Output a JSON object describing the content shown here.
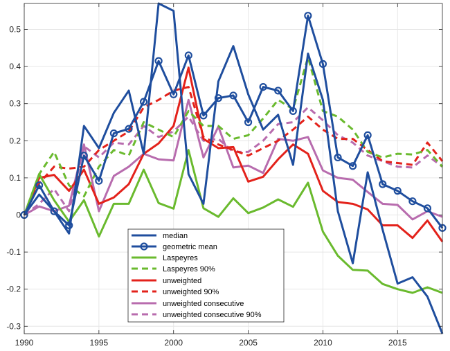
{
  "chart_data": {
    "type": "line",
    "title": "",
    "xlabel": "",
    "ylabel": "",
    "xlim": [
      1990,
      2018
    ],
    "ylim": [
      -0.32,
      0.57
    ],
    "grid": true,
    "legend_position": "bottom-center",
    "x_ticks": [
      1990,
      1995,
      2000,
      2005,
      2010,
      2015
    ],
    "x_tick_labels": [
      "1990",
      "1995",
      "2000",
      "2005",
      "2010",
      "2015"
    ],
    "y_ticks": [
      -0.3,
      -0.2,
      -0.1,
      0,
      0.1,
      0.2,
      0.3,
      0.4,
      0.5
    ],
    "y_tick_labels": [
      "-0.3",
      "-0.2",
      "-0.1",
      "0",
      "0.1",
      "0.2",
      "0.3",
      "0.4",
      "0.5"
    ],
    "x": [
      1990,
      1991,
      1992,
      1993,
      1994,
      1995,
      1996,
      1997,
      1998,
      1999,
      2000,
      2001,
      2002,
      2003,
      2004,
      2005,
      2006,
      2007,
      2008,
      2009,
      2010,
      2011,
      2012,
      2013,
      2014,
      2015,
      2016,
      2017,
      2018
    ],
    "series": [
      {
        "name": "median",
        "color": "#1f4e9e",
        "dash": "solid",
        "marker": "none",
        "values": [
          0,
          0.055,
          0.01,
          -0.05,
          0.24,
          0.18,
          0.275,
          0.335,
          0.165,
          0.57,
          0.55,
          0.11,
          0.03,
          0.36,
          0.455,
          0.325,
          0.23,
          0.27,
          0.135,
          0.435,
          0.31,
          0.01,
          -0.13,
          0.115,
          -0.04,
          -0.185,
          -0.168,
          -0.22,
          -0.32
        ]
      },
      {
        "name": "geometric mean",
        "color": "#1f4e9e",
        "dash": "solid",
        "marker": "circle",
        "values": [
          0,
          0.08,
          0.01,
          -0.028,
          0.16,
          0.092,
          0.22,
          0.232,
          0.305,
          0.415,
          0.325,
          0.43,
          0.268,
          0.315,
          0.322,
          0.25,
          0.345,
          0.335,
          0.28,
          0.537,
          0.407,
          0.155,
          0.132,
          0.215,
          0.083,
          0.065,
          0.037,
          0.018,
          -0.035
        ]
      },
      {
        "name": "Laspeyres",
        "color": "#6aba2e",
        "dash": "solid",
        "marker": "none",
        "values": [
          0,
          0.11,
          0.04,
          -0.018,
          0.04,
          -0.058,
          0.03,
          0.03,
          0.122,
          0.032,
          0.017,
          0.175,
          0.018,
          -0.005,
          0.045,
          0.005,
          0.02,
          0.042,
          0.022,
          0.087,
          -0.045,
          -0.11,
          -0.148,
          -0.15,
          -0.186,
          -0.2,
          -0.21,
          -0.195,
          -0.21
        ]
      },
      {
        "name": "Laspeyres 90%",
        "color": "#6aba2e",
        "dash": "dashed",
        "marker": "none",
        "values": [
          0,
          0.11,
          0.17,
          0.08,
          0.05,
          0.13,
          0.175,
          0.16,
          0.25,
          0.23,
          0.21,
          0.28,
          0.24,
          0.24,
          0.205,
          0.215,
          0.26,
          0.31,
          0.285,
          0.425,
          0.28,
          0.265,
          0.23,
          0.17,
          0.155,
          0.165,
          0.163,
          0.175,
          0.13
        ]
      },
      {
        "name": "unweighted",
        "color": "#e3221b",
        "dash": "solid",
        "marker": "none",
        "values": [
          0,
          0.1,
          0.108,
          0.065,
          0.122,
          0.03,
          0.047,
          0.083,
          0.165,
          0.193,
          0.24,
          0.397,
          0.205,
          0.18,
          0.183,
          0.09,
          0.103,
          0.15,
          0.19,
          0.165,
          0.065,
          0.035,
          0.03,
          0.015,
          -0.028,
          -0.028,
          -0.062,
          -0.015,
          -0.072
        ]
      },
      {
        "name": "unweighted 90%",
        "color": "#e3221b",
        "dash": "dashed",
        "marker": "none",
        "values": [
          0,
          0.085,
          0.13,
          0.125,
          0.13,
          0.175,
          0.2,
          0.225,
          0.29,
          0.31,
          0.335,
          0.345,
          0.21,
          0.19,
          0.175,
          0.16,
          0.18,
          0.2,
          0.23,
          0.265,
          0.23,
          0.205,
          0.205,
          0.175,
          0.145,
          0.14,
          0.135,
          0.195,
          0.145
        ]
      },
      {
        "name": "unweighted consecutive",
        "color": "#b86cae",
        "dash": "solid",
        "marker": "none",
        "values": [
          0,
          0.023,
          0.01,
          0.025,
          0.19,
          0.01,
          0.105,
          0.13,
          0.165,
          0.15,
          0.147,
          0.31,
          0.155,
          0.238,
          0.128,
          0.133,
          0.113,
          0.205,
          0.2,
          0.21,
          0.12,
          0.1,
          0.095,
          0.062,
          0.03,
          0.027,
          -0.012,
          0.01,
          -0.005
        ]
      },
      {
        "name": "unweighted consecutive 90%",
        "color": "#b86cae",
        "dash": "dashed",
        "marker": "none",
        "values": [
          0,
          0.03,
          0.07,
          0.01,
          0.185,
          0.155,
          0.195,
          0.19,
          0.24,
          0.21,
          0.225,
          0.265,
          0.2,
          0.205,
          0.17,
          0.17,
          0.2,
          0.245,
          0.25,
          0.29,
          0.255,
          0.215,
          0.195,
          0.16,
          0.145,
          0.13,
          0.128,
          0.16,
          0.13
        ]
      }
    ]
  }
}
